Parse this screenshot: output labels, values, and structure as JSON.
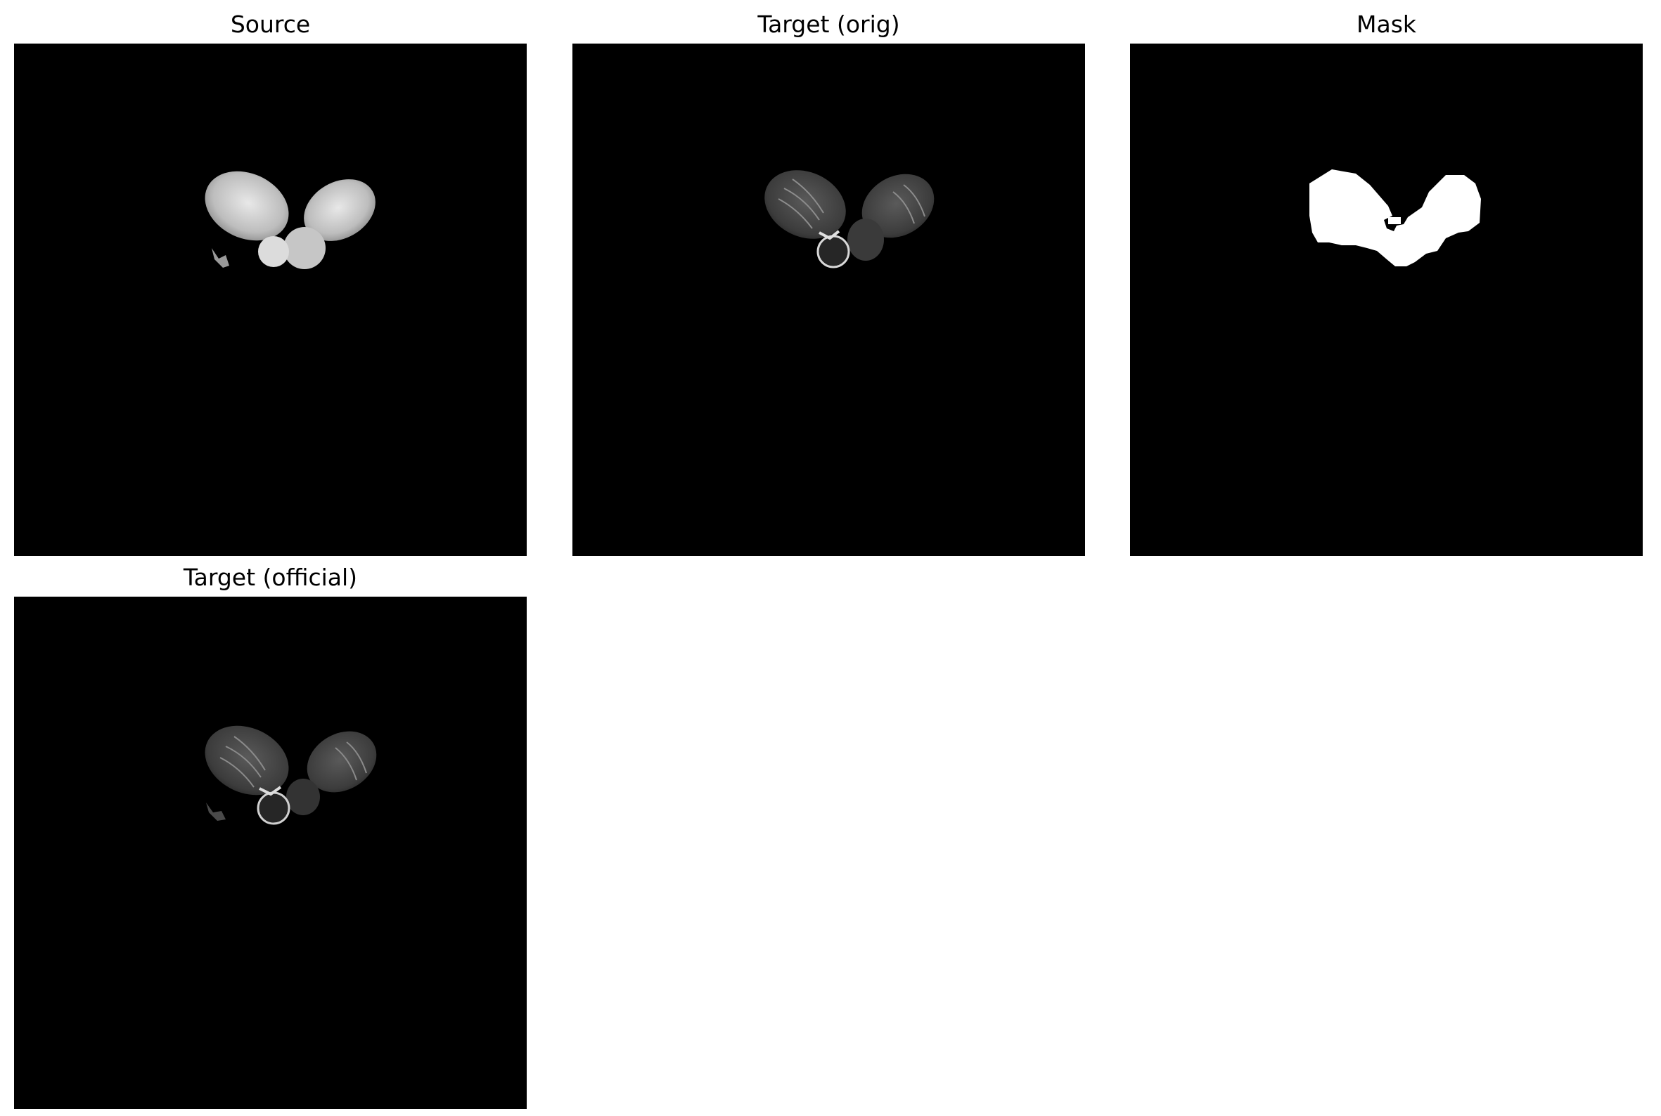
{
  "panels": [
    {
      "id": "source",
      "title": "Source"
    },
    {
      "id": "target-orig",
      "title": "Target (orig)"
    },
    {
      "id": "mask",
      "title": "Mask"
    },
    {
      "id": "target-official",
      "title": "Target (official)"
    }
  ],
  "colors": {
    "background": "#000000",
    "mask": "#ffffff",
    "figure_bg": "#ffffff"
  }
}
